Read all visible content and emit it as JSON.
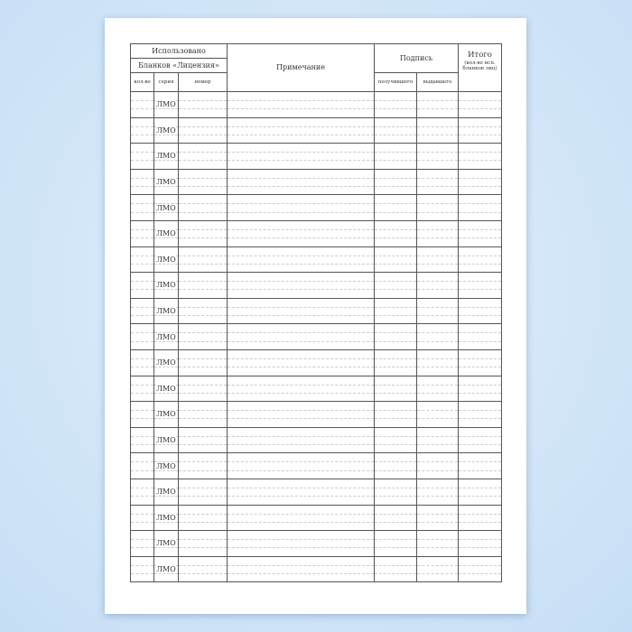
{
  "header": {
    "used": "Использовано",
    "blanks": "Бланков «Лицензия»",
    "note": "Примечание",
    "signature": "Подпись",
    "total": "Итого",
    "total_sub": "(кол-во исп. бланков лиц)",
    "qty": "кол-во",
    "series": "серия",
    "number": "номер",
    "received": "получившего",
    "issued": "выдавшего"
  },
  "rows": [
    "ЛМО",
    "ЛМО",
    "ЛМО",
    "ЛМО",
    "ЛМО",
    "ЛМО",
    "ЛМО",
    "ЛМО",
    "ЛМО",
    "ЛМО",
    "ЛМО",
    "ЛМО",
    "ЛМО",
    "ЛМО",
    "ЛМО",
    "ЛМО",
    "ЛМО",
    "ЛМО",
    "ЛМО"
  ]
}
